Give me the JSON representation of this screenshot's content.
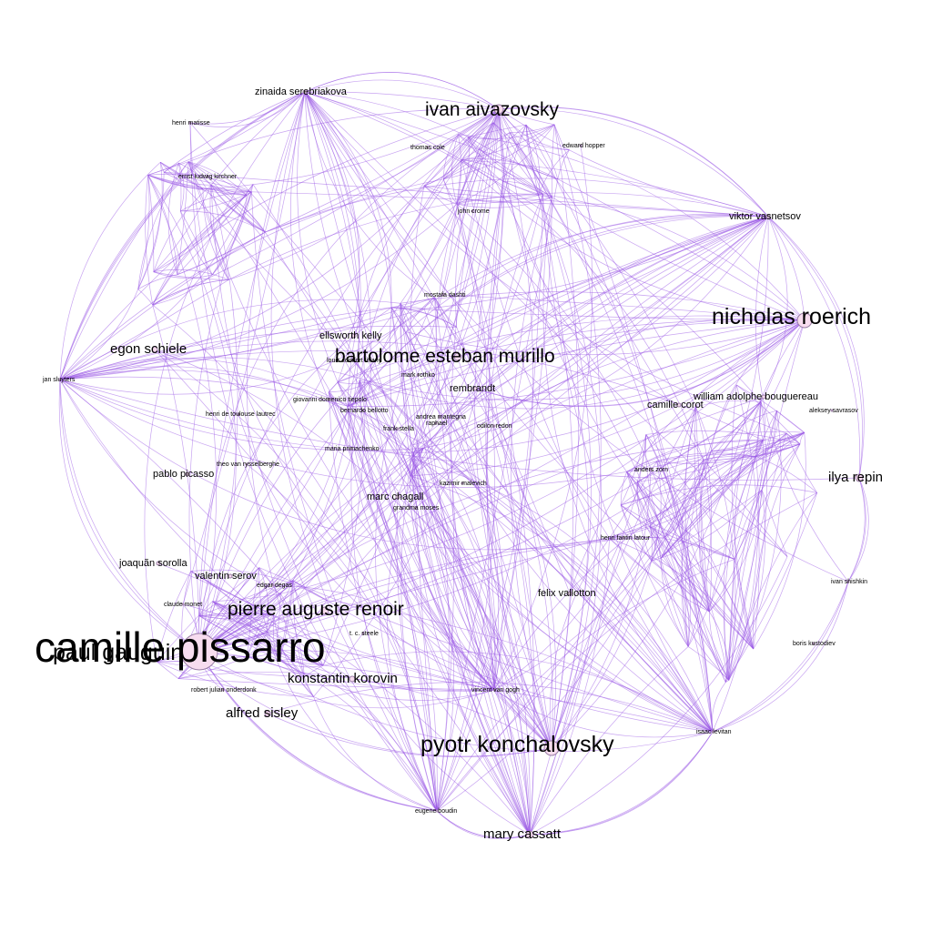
{
  "colors": {
    "edge": "#9b59e6",
    "node_fill": "#f7dcef",
    "node_stroke": "#9a7fa6",
    "background": "#ffffff"
  },
  "nodes": [
    {
      "id": "camille-pissarro",
      "label": "camille pissarro",
      "size": "xl"
    },
    {
      "id": "paul-gauguin",
      "label": "paul gauguin",
      "size": "l"
    },
    {
      "id": "pyotr-konchalovsky",
      "label": "pyotr konchalovsky",
      "size": "l"
    },
    {
      "id": "nicholas-roerich",
      "label": "nicholas roerich",
      "size": "l"
    },
    {
      "id": "ivan-aivazovsky",
      "label": "ivan aivazovsky",
      "size": "m"
    },
    {
      "id": "bartolome-esteban-murillo",
      "label": "bartolome esteban murillo",
      "size": "m"
    },
    {
      "id": "pierre-auguste-renoir",
      "label": "pierre auguste renoir",
      "size": "m"
    },
    {
      "id": "egon-schiele",
      "label": "egon schiele",
      "size": "s"
    },
    {
      "id": "ilya-repin",
      "label": "ilya repin",
      "size": "s"
    },
    {
      "id": "konstantin-korovin",
      "label": "konstantin korovin",
      "size": "s"
    },
    {
      "id": "alfred-sisley",
      "label": "alfred sisley",
      "size": "s"
    },
    {
      "id": "mary-cassatt",
      "label": "mary cassatt",
      "size": "s"
    },
    {
      "id": "zinaida-serebriakova",
      "label": "zinaida serebriakova",
      "size": "xs"
    },
    {
      "id": "viktor-vasnetsov",
      "label": "viktor vasnetsov",
      "size": "xs"
    },
    {
      "id": "ellsworth-kelly",
      "label": "ellsworth kelly",
      "size": "xs"
    },
    {
      "id": "rembrandt",
      "label": "rembrandt",
      "size": "xs"
    },
    {
      "id": "camille-corot",
      "label": "camille corot",
      "size": "xs"
    },
    {
      "id": "william-adolphe-bouguereau",
      "label": "william adolphe bouguereau",
      "size": "xs"
    },
    {
      "id": "pablo-picasso",
      "label": "pablo picasso",
      "size": "xs"
    },
    {
      "id": "marc-chagall",
      "label": "marc chagall",
      "size": "xs"
    },
    {
      "id": "joaquin-sorolla",
      "label": "joaquãn sorolla",
      "size": "xs"
    },
    {
      "id": "valentin-serov",
      "label": "valentin serov",
      "size": "xs"
    },
    {
      "id": "felix-vallotton",
      "label": "felix vallotton",
      "size": "xs"
    },
    {
      "id": "henri-matisse",
      "label": "henri matisse",
      "size": "xxs"
    },
    {
      "id": "ernst-ludwig-kirchner",
      "label": "ernst ludwig kirchner",
      "size": "xxs"
    },
    {
      "id": "thomas-cole",
      "label": "thomas cole",
      "size": "xxs"
    },
    {
      "id": "edward-hopper",
      "label": "edward hopper",
      "size": "xxs"
    },
    {
      "id": "john-crome",
      "label": "john crome",
      "size": "xxs"
    },
    {
      "id": "mostafa-dashti",
      "label": "mostafa dashti",
      "size": "xxs"
    },
    {
      "id": "jan-sluyters",
      "label": "jan sluyters",
      "size": "xxs"
    },
    {
      "id": "louis-comfort-tiffany",
      "label": "louis comfort tiffany",
      "size": "xxs"
    },
    {
      "id": "mark-rothko",
      "label": "mark rothko",
      "size": "xxs"
    },
    {
      "id": "giovanni-domenico-tiepolo",
      "label": "giovanni domenico tiepolo",
      "size": "xxs"
    },
    {
      "id": "bernardo-bellotto",
      "label": "bernardo bellotto",
      "size": "xxs"
    },
    {
      "id": "henri-de-toulouse-lautrec",
      "label": "henri de toulouse lautrec",
      "size": "xxs"
    },
    {
      "id": "andrea-mantegna",
      "label": "andrea mantegna",
      "size": "xxs"
    },
    {
      "id": "raphael",
      "label": "raphael",
      "size": "xxs"
    },
    {
      "id": "frank-stella",
      "label": "frank stella",
      "size": "xxs"
    },
    {
      "id": "odilon-redon",
      "label": "odilon redon",
      "size": "xxs"
    },
    {
      "id": "maria-primachenko",
      "label": "maria primachenko",
      "size": "xxs"
    },
    {
      "id": "theo-van-rysselberghe",
      "label": "theo van rysselberghe",
      "size": "xxs"
    },
    {
      "id": "kazimir-malevich",
      "label": "kazimir malevich",
      "size": "xxs"
    },
    {
      "id": "grandma-moses",
      "label": "grandma moses",
      "size": "xxs"
    },
    {
      "id": "anders-zorn",
      "label": "anders zorn",
      "size": "xxs"
    },
    {
      "id": "henri-fantin-latour",
      "label": "henri fantin latour",
      "size": "xxs"
    },
    {
      "id": "aleksey-savrasov",
      "label": "aleksey savrasov",
      "size": "xxs"
    },
    {
      "id": "ivan-shishkin",
      "label": "ivan shishkin",
      "size": "xxs"
    },
    {
      "id": "boris-kustodiev",
      "label": "boris kustodiev",
      "size": "xxs"
    },
    {
      "id": "isaac-levitan",
      "label": "isaac levitan",
      "size": "xxs"
    },
    {
      "id": "vincent-van-gogh",
      "label": "vincent van gogh",
      "size": "xxs"
    },
    {
      "id": "eugene-boudin",
      "label": "eugene boudin",
      "size": "xxs"
    },
    {
      "id": "claude-monet",
      "label": "claude monet",
      "size": "xxs"
    },
    {
      "id": "edgar-degas",
      "label": "edgar degas",
      "size": "xxs"
    },
    {
      "id": "robert-julian-onderdonk",
      "label": "robert julian onderdonk",
      "size": "xxs"
    },
    {
      "id": "t-c-steele",
      "label": "t. c. steele",
      "size": "xxs"
    }
  ]
}
